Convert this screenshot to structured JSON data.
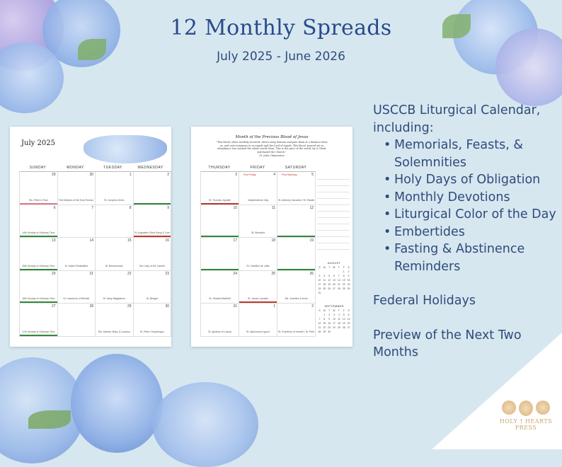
{
  "header": {
    "title": "12 Monthly Spreads",
    "subtitle": "July 2025 - June 2026"
  },
  "features": {
    "heading": "USCCB Liturgical Calendar, including:",
    "items": [
      "Memorials, Feasts, & Solemnities",
      "Holy Days of Obligation",
      "Monthly Devotions",
      "Liturgical Color of the Day",
      "Embertides",
      "Fasting & Abstinence Reminders"
    ],
    "federal": "Federal Holidays",
    "preview": "Preview of the Next Two Months"
  },
  "calendar_left": {
    "month": "July 2025",
    "days": [
      "SUNDAY",
      "MONDAY",
      "TUESDAY",
      "WEDNESDAY"
    ],
    "rows": [
      [
        {
          "n": "29",
          "cap": "Sts. Peter & Paul",
          "color": "#e07a8a"
        },
        {
          "n": "30",
          "cap": "First Martyrs of the Holy Roman Church",
          "color": ""
        },
        {
          "n": "1",
          "cap": "St. Junipero Serra",
          "color": ""
        },
        {
          "n": "2",
          "cap": "",
          "color": "#2f8a3a"
        }
      ],
      [
        {
          "n": "6",
          "cap": "14th Sunday in Ordinary Time",
          "color": "#2f8a3a"
        },
        {
          "n": "7",
          "cap": "",
          "color": ""
        },
        {
          "n": "8",
          "cap": "",
          "color": ""
        },
        {
          "n": "9",
          "cap": "St. Augustine Zhao Rong & Comp.",
          "color": "#c0392b"
        }
      ],
      [
        {
          "n": "13",
          "cap": "15th Sunday in Ordinary Time",
          "color": "#2f8a3a"
        },
        {
          "n": "14",
          "cap": "St. Kateri Tekakwitha",
          "color": ""
        },
        {
          "n": "15",
          "cap": "St. Bonaventure",
          "color": ""
        },
        {
          "n": "16",
          "cap": "Our Lady of Mt. Carmel",
          "color": ""
        }
      ],
      [
        {
          "n": "20",
          "cap": "16th Sunday in Ordinary Time",
          "color": "#2f8a3a"
        },
        {
          "n": "21",
          "cap": "St. Lawrence of Brindisi",
          "color": ""
        },
        {
          "n": "22",
          "cap": "St. Mary Magdalene",
          "color": ""
        },
        {
          "n": "23",
          "cap": "St. Bridget",
          "color": ""
        }
      ],
      [
        {
          "n": "27",
          "cap": "17th Sunday in Ordinary Time",
          "color": "#2f8a3a"
        },
        {
          "n": "28",
          "cap": "",
          "color": ""
        },
        {
          "n": "29",
          "cap": "Sts. Martha, Mary, & Lazarus",
          "color": ""
        },
        {
          "n": "30",
          "cap": "St. Peter Chrysologus",
          "color": ""
        }
      ]
    ]
  },
  "calendar_right": {
    "heading": "Month of the Precious Blood of Jesus",
    "quote": "\"This blood, when worthily received, drives away demons and puts them at a distance from us, and even summons to us angels and the Lord of angels. This blood, poured out in abundance, has washed the whole world clean. This is the price of the world; by it Christ purchased the Church.\"",
    "quote_by": "St. John Chrysostom",
    "days": [
      "THURSDAY",
      "FRIDAY",
      "SATURDAY"
    ],
    "rows": [
      [
        {
          "n": "3",
          "cap": "St. Thomas, Apostle",
          "color": "#c0392b"
        },
        {
          "n": "4",
          "cap": "Independence Day",
          "color": "",
          "tag": "First Friday"
        },
        {
          "n": "5",
          "cap": "St. Anthony Zaccaria / St. Elizabeth of Portugal",
          "color": "",
          "tag": "First Saturday"
        }
      ],
      [
        {
          "n": "10",
          "cap": "",
          "color": "#2f8a3a"
        },
        {
          "n": "11",
          "cap": "St. Benedict",
          "color": ""
        },
        {
          "n": "12",
          "cap": "",
          "color": "#2f8a3a"
        }
      ],
      [
        {
          "n": "17",
          "cap": "",
          "color": "#2f8a3a"
        },
        {
          "n": "18",
          "cap": "St. Camillus de Lellis",
          "color": ""
        },
        {
          "n": "19",
          "cap": "",
          "color": "#2f8a3a"
        }
      ],
      [
        {
          "n": "24",
          "cap": "St. Sharbel Makhlūf",
          "color": ""
        },
        {
          "n": "25",
          "cap": "St. James, Apostle",
          "color": "#c0392b"
        },
        {
          "n": "26",
          "cap": "Sts. Joachim & Anne",
          "color": ""
        }
      ],
      [
        {
          "n": "31",
          "cap": "St. Ignatius of Loyola",
          "color": ""
        },
        {
          "n": "1",
          "cap": "St. Alphonsus Liguori",
          "color": ""
        },
        {
          "n": "2",
          "cap": "St. Eusebius of Vercelli / St. Peter Julian Eymard",
          "color": ""
        }
      ]
    ],
    "mini": [
      {
        "title": "AUGUST",
        "head": [
          "S",
          "M",
          "T",
          "W",
          "T",
          "F",
          "S"
        ],
        "cells": [
          "",
          "",
          "",
          "",
          "",
          "1",
          "2",
          "3",
          "4",
          "5",
          "6",
          "7",
          "8",
          "9",
          "10",
          "11",
          "12",
          "13",
          "14",
          "15",
          "16",
          "17",
          "18",
          "19",
          "20",
          "21",
          "22",
          "23",
          "24",
          "25",
          "26",
          "27",
          "28",
          "29",
          "30",
          "31"
        ]
      },
      {
        "title": "SEPTEMBER",
        "head": [
          "S",
          "M",
          "T",
          "W",
          "T",
          "F",
          "S"
        ],
        "cells": [
          "",
          "1",
          "2",
          "3",
          "4",
          "5",
          "6",
          "7",
          "8",
          "9",
          "10",
          "11",
          "12",
          "13",
          "14",
          "15",
          "16",
          "17",
          "18",
          "19",
          "20",
          "21",
          "22",
          "23",
          "24",
          "25",
          "26",
          "27",
          "28",
          "29",
          "30"
        ]
      }
    ]
  },
  "logo": {
    "line1": "HOLY † HEARTS",
    "line2": "PRESS"
  }
}
